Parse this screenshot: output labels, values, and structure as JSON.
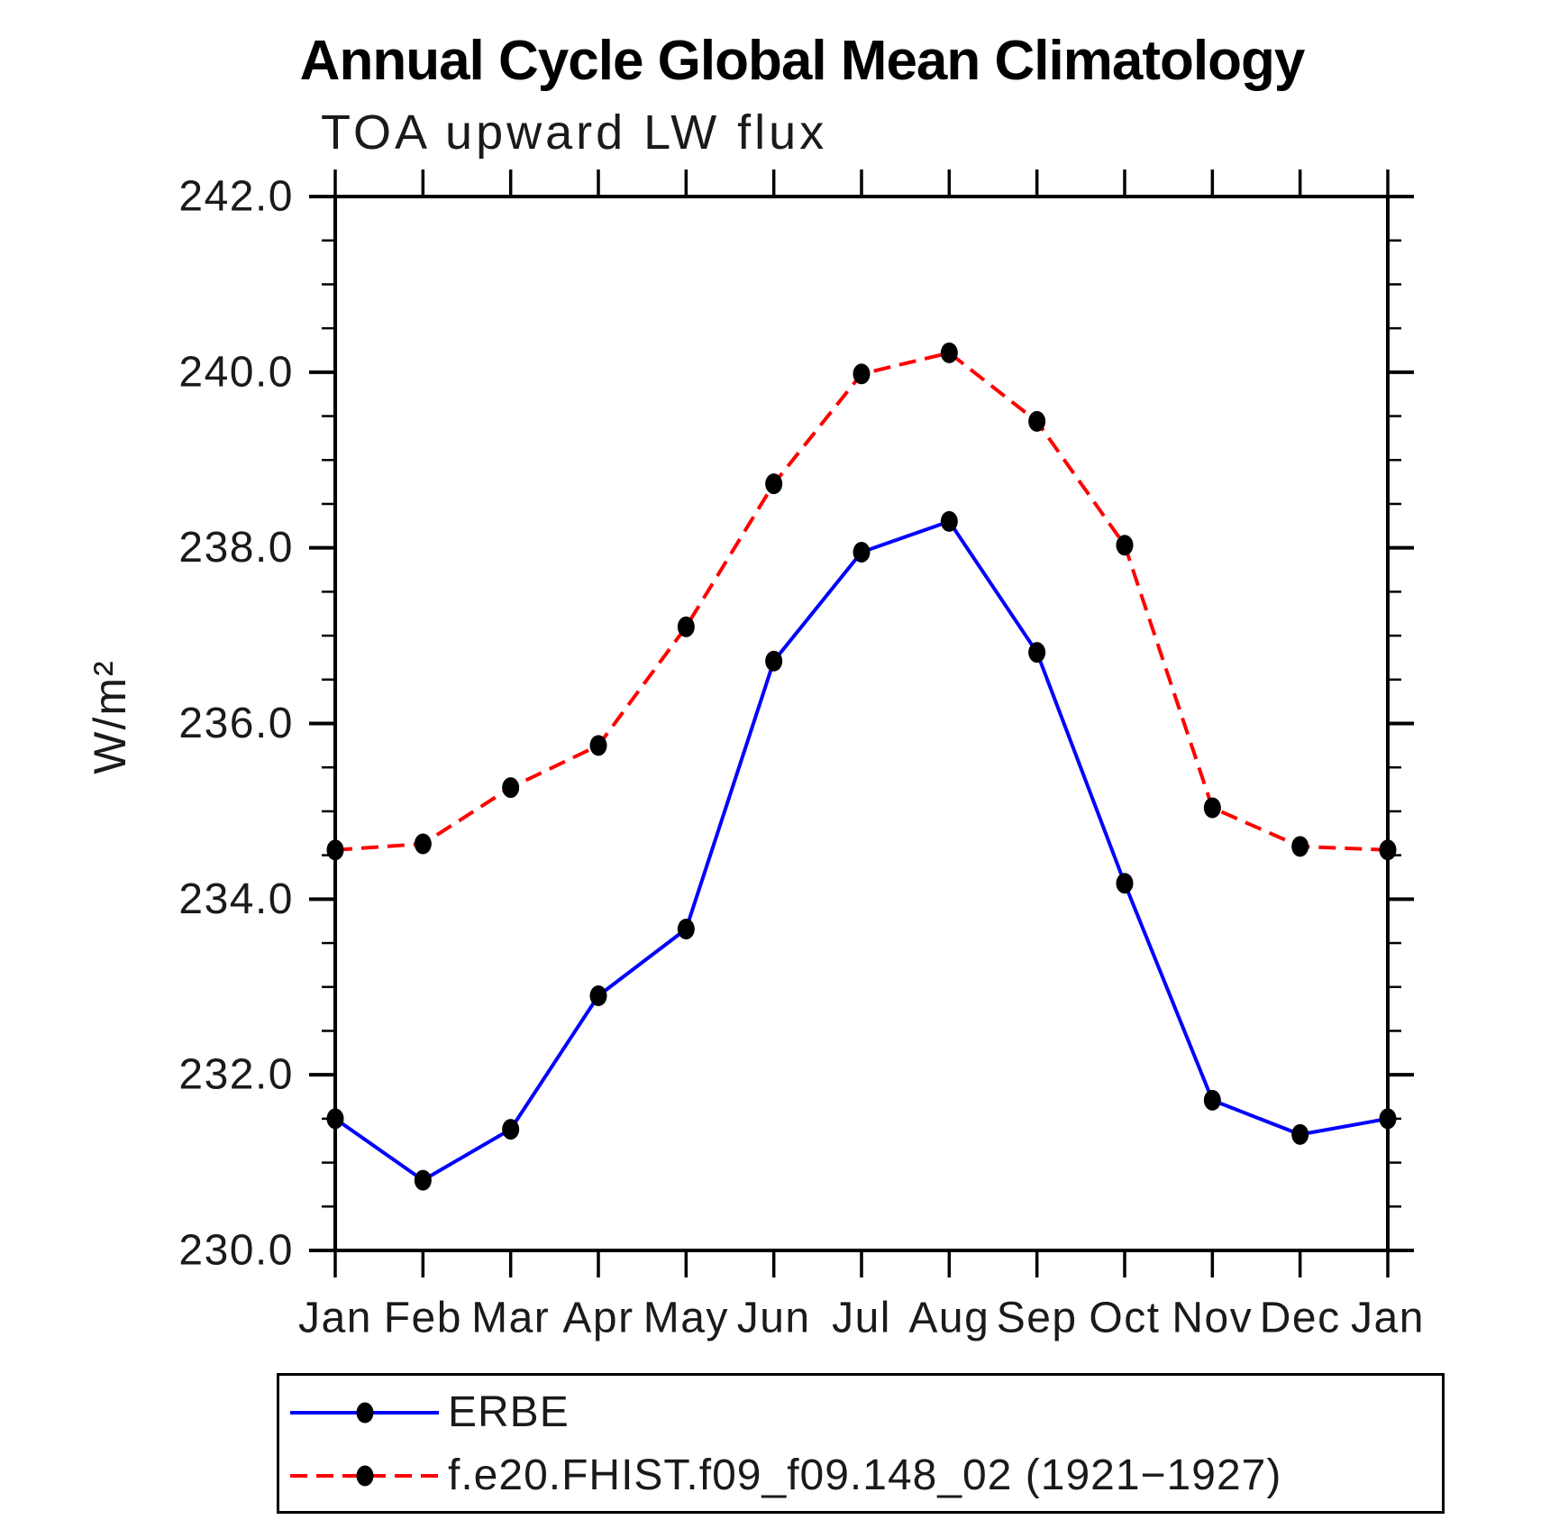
{
  "chart_data": {
    "type": "line",
    "title": "Annual Cycle Global Mean Climatology",
    "subtitle": "TOA upward LW flux",
    "ylabel": "W/m²",
    "xlabel": "",
    "ylim": [
      230.0,
      242.0
    ],
    "ytick_step": 2.0,
    "yminor_step": 0.5,
    "ytick_format_decimals": 1,
    "grid": false,
    "legend_position": "bottom",
    "categories": [
      "Jan",
      "Feb",
      "Mar",
      "Apr",
      "May",
      "Jun",
      "Jul",
      "Aug",
      "Sep",
      "Oct",
      "Nov",
      "Dec",
      "Jan"
    ],
    "series": [
      {
        "name": "ERBE",
        "color": "#0000ff",
        "line_style": "solid",
        "marker": "filled-circle",
        "marker_color": "#000000",
        "values": [
          231.5,
          230.8,
          231.38,
          232.9,
          233.66,
          236.71,
          237.95,
          238.3,
          236.81,
          234.18,
          231.71,
          231.32,
          231.5
        ]
      },
      {
        "name": "f.e20.FHIST.f09_f09.148_02 (1921−1927)",
        "color": "#ff0000",
        "line_style": "dashed",
        "marker": "filled-circle",
        "marker_color": "#000000",
        "values": [
          234.56,
          234.63,
          235.27,
          235.75,
          237.1,
          238.73,
          239.98,
          240.22,
          239.44,
          238.03,
          235.04,
          234.6,
          234.56
        ]
      }
    ]
  }
}
